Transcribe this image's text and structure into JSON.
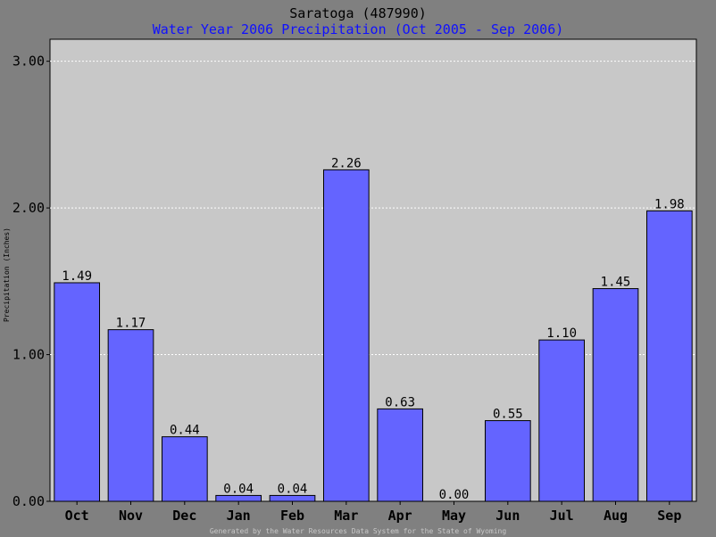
{
  "chart_data": {
    "type": "bar",
    "title": "Saratoga (487990)",
    "subtitle": "Water Year 2006 Precipitation (Oct 2005 - Sep 2006)",
    "ylabel": "Precipitation (Inches)",
    "xlabel": "",
    "categories": [
      "Oct",
      "Nov",
      "Dec",
      "Jan",
      "Feb",
      "Mar",
      "Apr",
      "May",
      "Jun",
      "Jul",
      "Aug",
      "Sep"
    ],
    "values": [
      1.49,
      1.17,
      0.44,
      0.04,
      0.04,
      2.26,
      0.63,
      0.0,
      0.55,
      1.1,
      1.45,
      1.98
    ],
    "value_labels": [
      "1.49",
      "1.17",
      "0.44",
      "0.04",
      "0.04",
      "2.26",
      "0.63",
      "0.00",
      "0.55",
      "1.10",
      "1.45",
      "1.98"
    ],
    "yticks": [
      0,
      1,
      2,
      3
    ],
    "ytick_labels": [
      "0.00",
      "1.00",
      "2.00",
      "3.00"
    ],
    "ylim": [
      0,
      3.15
    ],
    "grid": true,
    "legend": "none",
    "footer": "Generated by the Water Resources Data System for the State of Wyoming",
    "colors": {
      "background": "#808080",
      "plot_area": "#c8c8c8",
      "bar_fill": "#6464ff",
      "bar_stroke": "#000000",
      "grid": "#ffffff",
      "title": "#000000",
      "subtitle": "#1010ff"
    }
  }
}
